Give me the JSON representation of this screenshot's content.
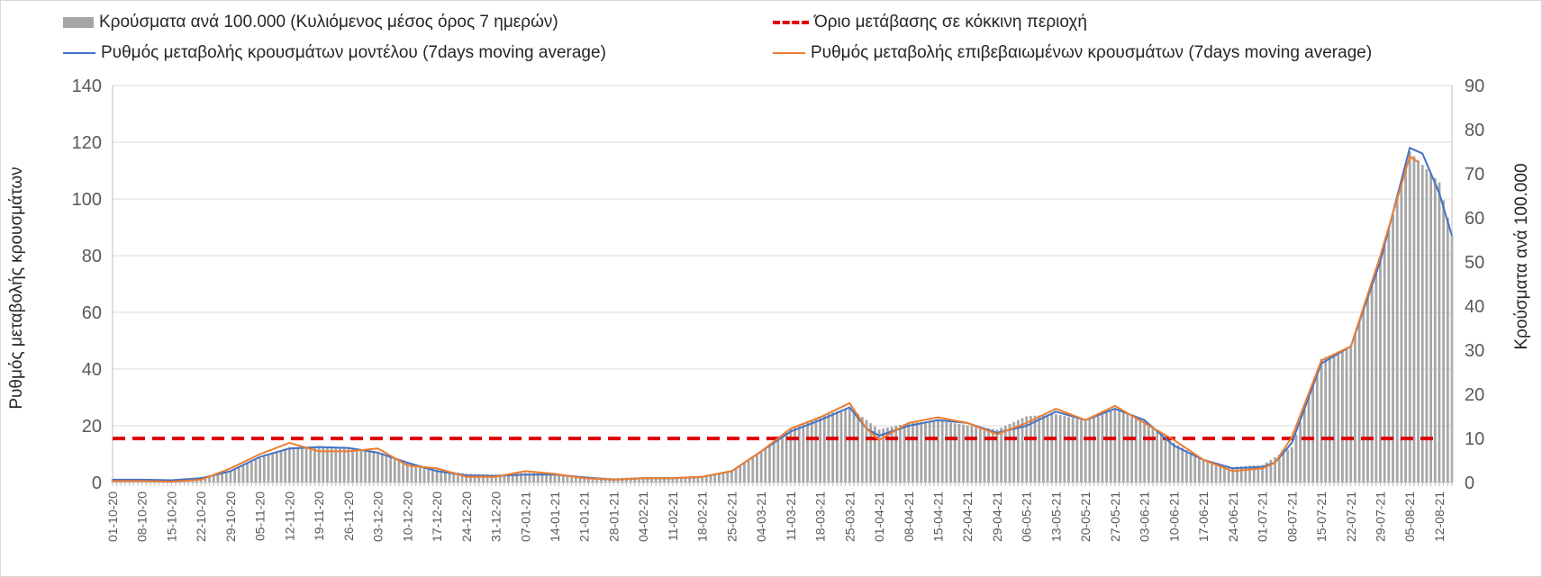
{
  "chart_data": {
    "type": "bar",
    "title": "",
    "legend": {
      "placement": "top",
      "items": [
        {
          "key": "bars",
          "label": "Κρούσματα ανά 100.000 (Κυλιόμενος μέσος όρος 7 ημερών)",
          "type": "bar"
        },
        {
          "key": "threshold",
          "label": "Όριο μετάβασης σε κόκκινη περιοχή",
          "type": "dashed-line"
        },
        {
          "key": "model",
          "label": "Ρυθμός μεταβολής κρουσμάτων μοντέλου (7days moving average)",
          "type": "line"
        },
        {
          "key": "confirmed",
          "label": "Ρυθμός μεταβολής επιβεβαιωμένων κρουσμάτων (7days moving average)",
          "type": "line"
        }
      ]
    },
    "ylabel_left": "Ρυθμός μεταβολής κρουσμάτων",
    "ylabel_right": "Κρούσματα ανά 100.000",
    "ylim_left": [
      0,
      140
    ],
    "ylim_right": [
      0,
      90
    ],
    "yticks_left": [
      "0",
      "20",
      "40",
      "60",
      "80",
      "100",
      "120",
      "140"
    ],
    "yticks_right": [
      "0",
      "10",
      "20",
      "30",
      "40",
      "50",
      "60",
      "70",
      "80",
      "90"
    ],
    "grid": "horizontal",
    "x_tick_labels": [
      "01-10-20",
      "08-10-20",
      "15-10-20",
      "22-10-20",
      "29-10-20",
      "05-11-20",
      "12-11-20",
      "19-11-20",
      "26-11-20",
      "03-12-20",
      "10-12-20",
      "17-12-20",
      "24-12-20",
      "31-12-20",
      "07-01-21",
      "14-01-21",
      "21-01-21",
      "28-01-21",
      "04-02-21",
      "11-02-21",
      "18-02-21",
      "25-02-21",
      "04-03-21",
      "11-03-21",
      "18-03-21",
      "25-03-21",
      "01-04-21",
      "08-04-21",
      "15-04-21",
      "22-04-21",
      "29-04-21",
      "06-05-21",
      "13-05-21",
      "20-05-21",
      "27-05-21",
      "03-06-21",
      "10-06-21",
      "17-06-21",
      "24-06-21",
      "01-07-21",
      "08-07-21",
      "15-07-21",
      "22-07-21",
      "29-07-21",
      "05-08-21",
      "12-08-21"
    ],
    "x_start": "01-10-20",
    "x_end": "15-08-21",
    "threshold_value_left": 15.5,
    "series": [
      {
        "key": "bars",
        "axis": "right",
        "color": "#a6a6a6",
        "points": [
          [
            "01-10-20",
            0.8
          ],
          [
            "08-10-20",
            0.8
          ],
          [
            "15-10-20",
            0.7
          ],
          [
            "22-10-20",
            1.2
          ],
          [
            "29-10-20",
            2.5
          ],
          [
            "05-11-20",
            5.5
          ],
          [
            "12-11-20",
            8
          ],
          [
            "19-11-20",
            8.2
          ],
          [
            "26-11-20",
            8
          ],
          [
            "03-12-20",
            7
          ],
          [
            "10-12-20",
            4.5
          ],
          [
            "17-12-20",
            3
          ],
          [
            "24-12-20",
            2
          ],
          [
            "31-12-20",
            1.8
          ],
          [
            "07-01-21",
            2.2
          ],
          [
            "14-01-21",
            2
          ],
          [
            "21-01-21",
            1.2
          ],
          [
            "28-01-21",
            1
          ],
          [
            "04-02-21",
            1.2
          ],
          [
            "11-02-21",
            1.2
          ],
          [
            "18-02-21",
            1.5
          ],
          [
            "25-02-21",
            2.5
          ],
          [
            "04-03-21",
            7
          ],
          [
            "11-03-21",
            12
          ],
          [
            "18-03-21",
            15
          ],
          [
            "25-03-21",
            17
          ],
          [
            "01-04-21",
            12
          ],
          [
            "08-04-21",
            13.5
          ],
          [
            "15-04-21",
            14
          ],
          [
            "22-04-21",
            13
          ],
          [
            "29-04-21",
            12
          ],
          [
            "06-05-21",
            15
          ],
          [
            "13-05-21",
            15.5
          ],
          [
            "20-05-21",
            14
          ],
          [
            "27-05-21",
            16.5
          ],
          [
            "03-06-21",
            14
          ],
          [
            "10-06-21",
            9
          ],
          [
            "17-06-21",
            5
          ],
          [
            "24-06-21",
            3.5
          ],
          [
            "01-07-21",
            4
          ],
          [
            "08-07-21",
            8
          ],
          [
            "15-07-21",
            28
          ],
          [
            "22-07-21",
            31
          ],
          [
            "29-07-21",
            50
          ],
          [
            "05-08-21",
            75
          ],
          [
            "12-08-21",
            68
          ],
          [
            "15-08-21",
            56
          ]
        ]
      },
      {
        "key": "model",
        "axis": "left",
        "color": "#4472c4",
        "points": [
          [
            "01-10-20",
            1
          ],
          [
            "08-10-20",
            1
          ],
          [
            "15-10-20",
            0.8
          ],
          [
            "22-10-20",
            1.5
          ],
          [
            "29-10-20",
            4
          ],
          [
            "05-11-20",
            9
          ],
          [
            "12-11-20",
            12
          ],
          [
            "19-11-20",
            12.5
          ],
          [
            "26-11-20",
            12.2
          ],
          [
            "03-12-20",
            10.5
          ],
          [
            "10-12-20",
            7
          ],
          [
            "17-12-20",
            4
          ],
          [
            "24-12-20",
            2.5
          ],
          [
            "31-12-20",
            2.3
          ],
          [
            "07-01-21",
            2.8
          ],
          [
            "14-01-21",
            2.8
          ],
          [
            "21-01-21",
            1.8
          ],
          [
            "28-01-21",
            1
          ],
          [
            "04-02-21",
            1.5
          ],
          [
            "11-02-21",
            1.5
          ],
          [
            "18-02-21",
            2
          ],
          [
            "25-02-21",
            4
          ],
          [
            "04-03-21",
            11
          ],
          [
            "11-03-21",
            18
          ],
          [
            "18-03-21",
            22
          ],
          [
            "25-03-21",
            26.5
          ],
          [
            "29-03-21",
            19
          ],
          [
            "01-04-21",
            16.5
          ],
          [
            "08-04-21",
            20
          ],
          [
            "15-04-21",
            22
          ],
          [
            "22-04-21",
            21
          ],
          [
            "29-04-21",
            17.5
          ],
          [
            "06-05-21",
            20
          ],
          [
            "13-05-21",
            25
          ],
          [
            "20-05-21",
            22
          ],
          [
            "27-05-21",
            26
          ],
          [
            "03-06-21",
            22
          ],
          [
            "10-06-21",
            13
          ],
          [
            "17-06-21",
            8
          ],
          [
            "24-06-21",
            5
          ],
          [
            "01-07-21",
            5.5
          ],
          [
            "04-07-21",
            7
          ],
          [
            "08-07-21",
            14
          ],
          [
            "15-07-21",
            42
          ],
          [
            "22-07-21",
            48
          ],
          [
            "29-07-21",
            78
          ],
          [
            "05-08-21",
            118
          ],
          [
            "08-08-21",
            116
          ],
          [
            "12-08-21",
            102
          ],
          [
            "15-08-21",
            87
          ]
        ]
      },
      {
        "key": "confirmed",
        "axis": "left",
        "color": "#ed7d31",
        "points": [
          [
            "01-10-20",
            0.5
          ],
          [
            "08-10-20",
            0.5
          ],
          [
            "15-10-20",
            0.3
          ],
          [
            "22-10-20",
            1
          ],
          [
            "29-10-20",
            5
          ],
          [
            "05-11-20",
            10
          ],
          [
            "12-11-20",
            14
          ],
          [
            "19-11-20",
            11
          ],
          [
            "26-11-20",
            11
          ],
          [
            "03-12-20",
            12
          ],
          [
            "10-12-20",
            6
          ],
          [
            "17-12-20",
            5
          ],
          [
            "24-12-20",
            2
          ],
          [
            "31-12-20",
            2
          ],
          [
            "07-01-21",
            4
          ],
          [
            "14-01-21",
            3
          ],
          [
            "21-01-21",
            1.5
          ],
          [
            "28-01-21",
            1
          ],
          [
            "04-02-21",
            1.5
          ],
          [
            "11-02-21",
            1.5
          ],
          [
            "18-02-21",
            2
          ],
          [
            "25-02-21",
            4
          ],
          [
            "04-03-21",
            11
          ],
          [
            "11-03-21",
            19
          ],
          [
            "18-03-21",
            23
          ],
          [
            "25-03-21",
            28
          ],
          [
            "29-03-21",
            19
          ],
          [
            "01-04-21",
            15
          ],
          [
            "08-04-21",
            21
          ],
          [
            "15-04-21",
            23
          ],
          [
            "22-04-21",
            21
          ],
          [
            "29-04-21",
            17
          ],
          [
            "06-05-21",
            21
          ],
          [
            "13-05-21",
            26
          ],
          [
            "20-05-21",
            22
          ],
          [
            "27-05-21",
            27
          ],
          [
            "03-06-21",
            21
          ],
          [
            "10-06-21",
            15
          ],
          [
            "17-06-21",
            8
          ],
          [
            "24-06-21",
            4
          ],
          [
            "01-07-21",
            5
          ],
          [
            "04-07-21",
            7
          ],
          [
            "08-07-21",
            16
          ],
          [
            "15-07-21",
            43
          ],
          [
            "22-07-21",
            48
          ],
          [
            "29-07-21",
            80
          ],
          [
            "05-08-21",
            115
          ],
          [
            "07-08-21",
            113
          ]
        ]
      }
    ]
  },
  "colors": {
    "bars": "#a6a6a6",
    "threshold": "#e00000",
    "model": "#4472c4",
    "confirmed": "#ed7d31",
    "grid": "#d9d9d9",
    "text": "#595959"
  }
}
